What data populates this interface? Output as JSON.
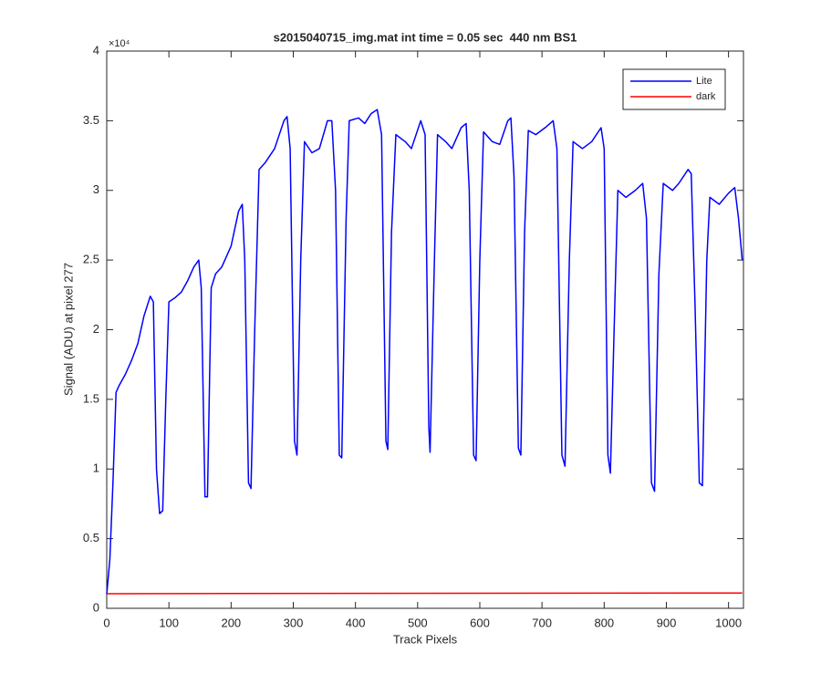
{
  "chart_data": {
    "type": "line",
    "title": "s2015040715_img.mat int time = 0.05 sec  440 nm BS1",
    "xlabel": "Track Pixels",
    "ylabel": "Signal (ADU) at pixel 277",
    "y_exponent_label": "×10⁴",
    "xlim": [
      0,
      1024
    ],
    "ylim": [
      0,
      4
    ],
    "xticks": [
      0,
      100,
      200,
      300,
      400,
      500,
      600,
      700,
      800,
      900,
      1000
    ],
    "yticks": [
      0,
      0.5,
      1,
      1.5,
      2,
      2.5,
      3,
      3.5,
      4
    ],
    "grid": false,
    "legend": "northeast",
    "series": [
      {
        "name": "Lite",
        "color": "#0000ff",
        "x": [
          0,
          5,
          10,
          15,
          20,
          30,
          40,
          50,
          60,
          70,
          75,
          80,
          85,
          90,
          95,
          100,
          110,
          120,
          130,
          140,
          148,
          152,
          158,
          162,
          168,
          175,
          185,
          200,
          212,
          218,
          222,
          228,
          232,
          238,
          245,
          255,
          270,
          285,
          290,
          295,
          302,
          306,
          312,
          318,
          330,
          342,
          355,
          362,
          368,
          374,
          378,
          385,
          390,
          405,
          415,
          425,
          435,
          442,
          449,
          452,
          458,
          465,
          480,
          490,
          505,
          512,
          518,
          520,
          527,
          532,
          545,
          555,
          570,
          578,
          583,
          590,
          594,
          600,
          606,
          620,
          632,
          645,
          650,
          655,
          662,
          666,
          672,
          678,
          690,
          705,
          718,
          724,
          732,
          737,
          744,
          750,
          765,
          780,
          795,
          800,
          806,
          810,
          816,
          822,
          835,
          850,
          862,
          868,
          876,
          881,
          888,
          895,
          910,
          920,
          935,
          940,
          946,
          953,
          958,
          965,
          970,
          985,
          1000,
          1010,
          1016,
          1022
        ],
        "values": [
          0.1,
          0.35,
          0.9,
          1.55,
          1.6,
          1.68,
          1.78,
          1.9,
          2.1,
          2.24,
          2.2,
          1.0,
          0.68,
          0.7,
          1.5,
          2.2,
          2.23,
          2.27,
          2.35,
          2.45,
          2.5,
          2.3,
          0.8,
          0.8,
          2.3,
          2.4,
          2.45,
          2.6,
          2.85,
          2.9,
          2.5,
          0.9,
          0.86,
          2.0,
          3.15,
          3.2,
          3.3,
          3.5,
          3.53,
          3.3,
          1.2,
          1.1,
          2.5,
          3.35,
          3.27,
          3.3,
          3.5,
          3.5,
          3.0,
          1.1,
          1.08,
          2.8,
          3.5,
          3.52,
          3.48,
          3.55,
          3.58,
          3.4,
          1.2,
          1.14,
          2.7,
          3.4,
          3.35,
          3.3,
          3.5,
          3.4,
          1.3,
          1.12,
          2.5,
          3.4,
          3.35,
          3.3,
          3.45,
          3.48,
          3.0,
          1.1,
          1.06,
          2.5,
          3.42,
          3.35,
          3.33,
          3.5,
          3.52,
          3.1,
          1.15,
          1.1,
          2.7,
          3.43,
          3.4,
          3.45,
          3.5,
          3.3,
          1.1,
          1.02,
          2.5,
          3.35,
          3.3,
          3.35,
          3.45,
          3.3,
          1.1,
          0.97,
          2.0,
          3.0,
          2.95,
          3.0,
          3.05,
          2.8,
          0.9,
          0.84,
          2.4,
          3.05,
          3.0,
          3.05,
          3.15,
          3.12,
          2.2,
          0.9,
          0.88,
          2.5,
          2.95,
          2.9,
          2.98,
          3.02,
          2.8,
          2.5
        ]
      },
      {
        "name": "dark",
        "color": "#ff0000",
        "x": [
          0,
          1022
        ],
        "values": [
          0.105,
          0.11
        ]
      }
    ]
  }
}
